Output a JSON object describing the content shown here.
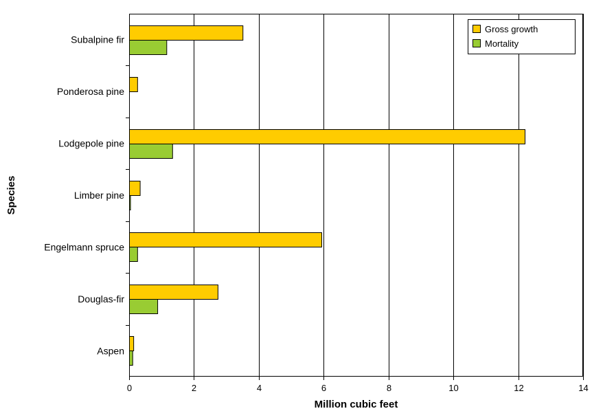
{
  "chart_data": {
    "type": "bar",
    "orientation": "horizontal",
    "title": "",
    "xlabel": "Million cubic feet",
    "ylabel": "Species",
    "categories": [
      "Subalpine fir",
      "Ponderosa pine",
      "Lodgepole pine",
      "Limber pine",
      "Engelmann spruce",
      "Douglas-fir",
      "Aspen"
    ],
    "series": [
      {
        "name": "Gross growth",
        "color": "#ffcc00",
        "values": [
          3.5,
          0.25,
          12.2,
          0.33,
          5.93,
          2.73,
          0.13
        ]
      },
      {
        "name": "Mortality",
        "color": "#99cc33",
        "values": [
          1.15,
          0,
          1.33,
          0.01,
          0.25,
          0.87,
          0.1
        ]
      }
    ],
    "xlim": [
      0,
      14
    ],
    "xticks": [
      "0",
      "2",
      "4",
      "6",
      "8",
      "10",
      "12",
      "14"
    ],
    "grid": "vertical",
    "legend": "top-right"
  }
}
